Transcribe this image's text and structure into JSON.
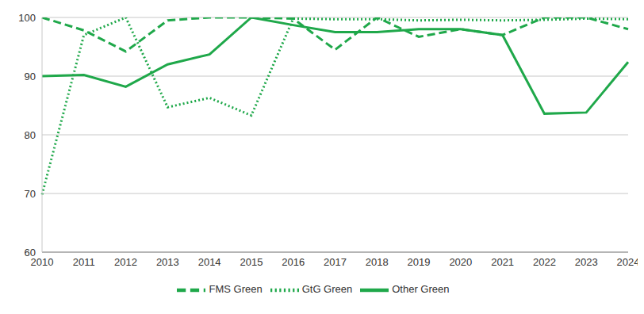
{
  "chart_data": {
    "type": "line",
    "categories": [
      "2010",
      "2011",
      "2012",
      "2013",
      "2014",
      "2015",
      "2016",
      "2017",
      "2018",
      "2019",
      "2020",
      "2021",
      "2022",
      "2023",
      "2024"
    ],
    "series": [
      {
        "name": "FMS Green",
        "color": "#1fa84a",
        "line_style": "dashed",
        "values": [
          100,
          97.8,
          94.2,
          99.5,
          100,
          100,
          99.8,
          94.5,
          100,
          96.7,
          98,
          97,
          100,
          100,
          98
        ]
      },
      {
        "name": "GtG Green",
        "color": "#1fa84a",
        "line_style": "dotted",
        "values": [
          69.8,
          97,
          100,
          84.7,
          86.3,
          83.3,
          99.8,
          99.7,
          99.7,
          99.5,
          99.6,
          99.5,
          99.6,
          99.8,
          99.7
        ]
      },
      {
        "name": "Other Green",
        "color": "#1fa84a",
        "line_style": "solid",
        "values": [
          90,
          90.2,
          88.2,
          92,
          93.7,
          100,
          98.7,
          97.5,
          97.5,
          98,
          98,
          97,
          83.6,
          83.8,
          92.4
        ]
      }
    ],
    "ylim": [
      60,
      100
    ],
    "yticks": [
      60,
      70,
      80,
      90,
      100
    ],
    "grid": true,
    "legend": "bottom"
  }
}
